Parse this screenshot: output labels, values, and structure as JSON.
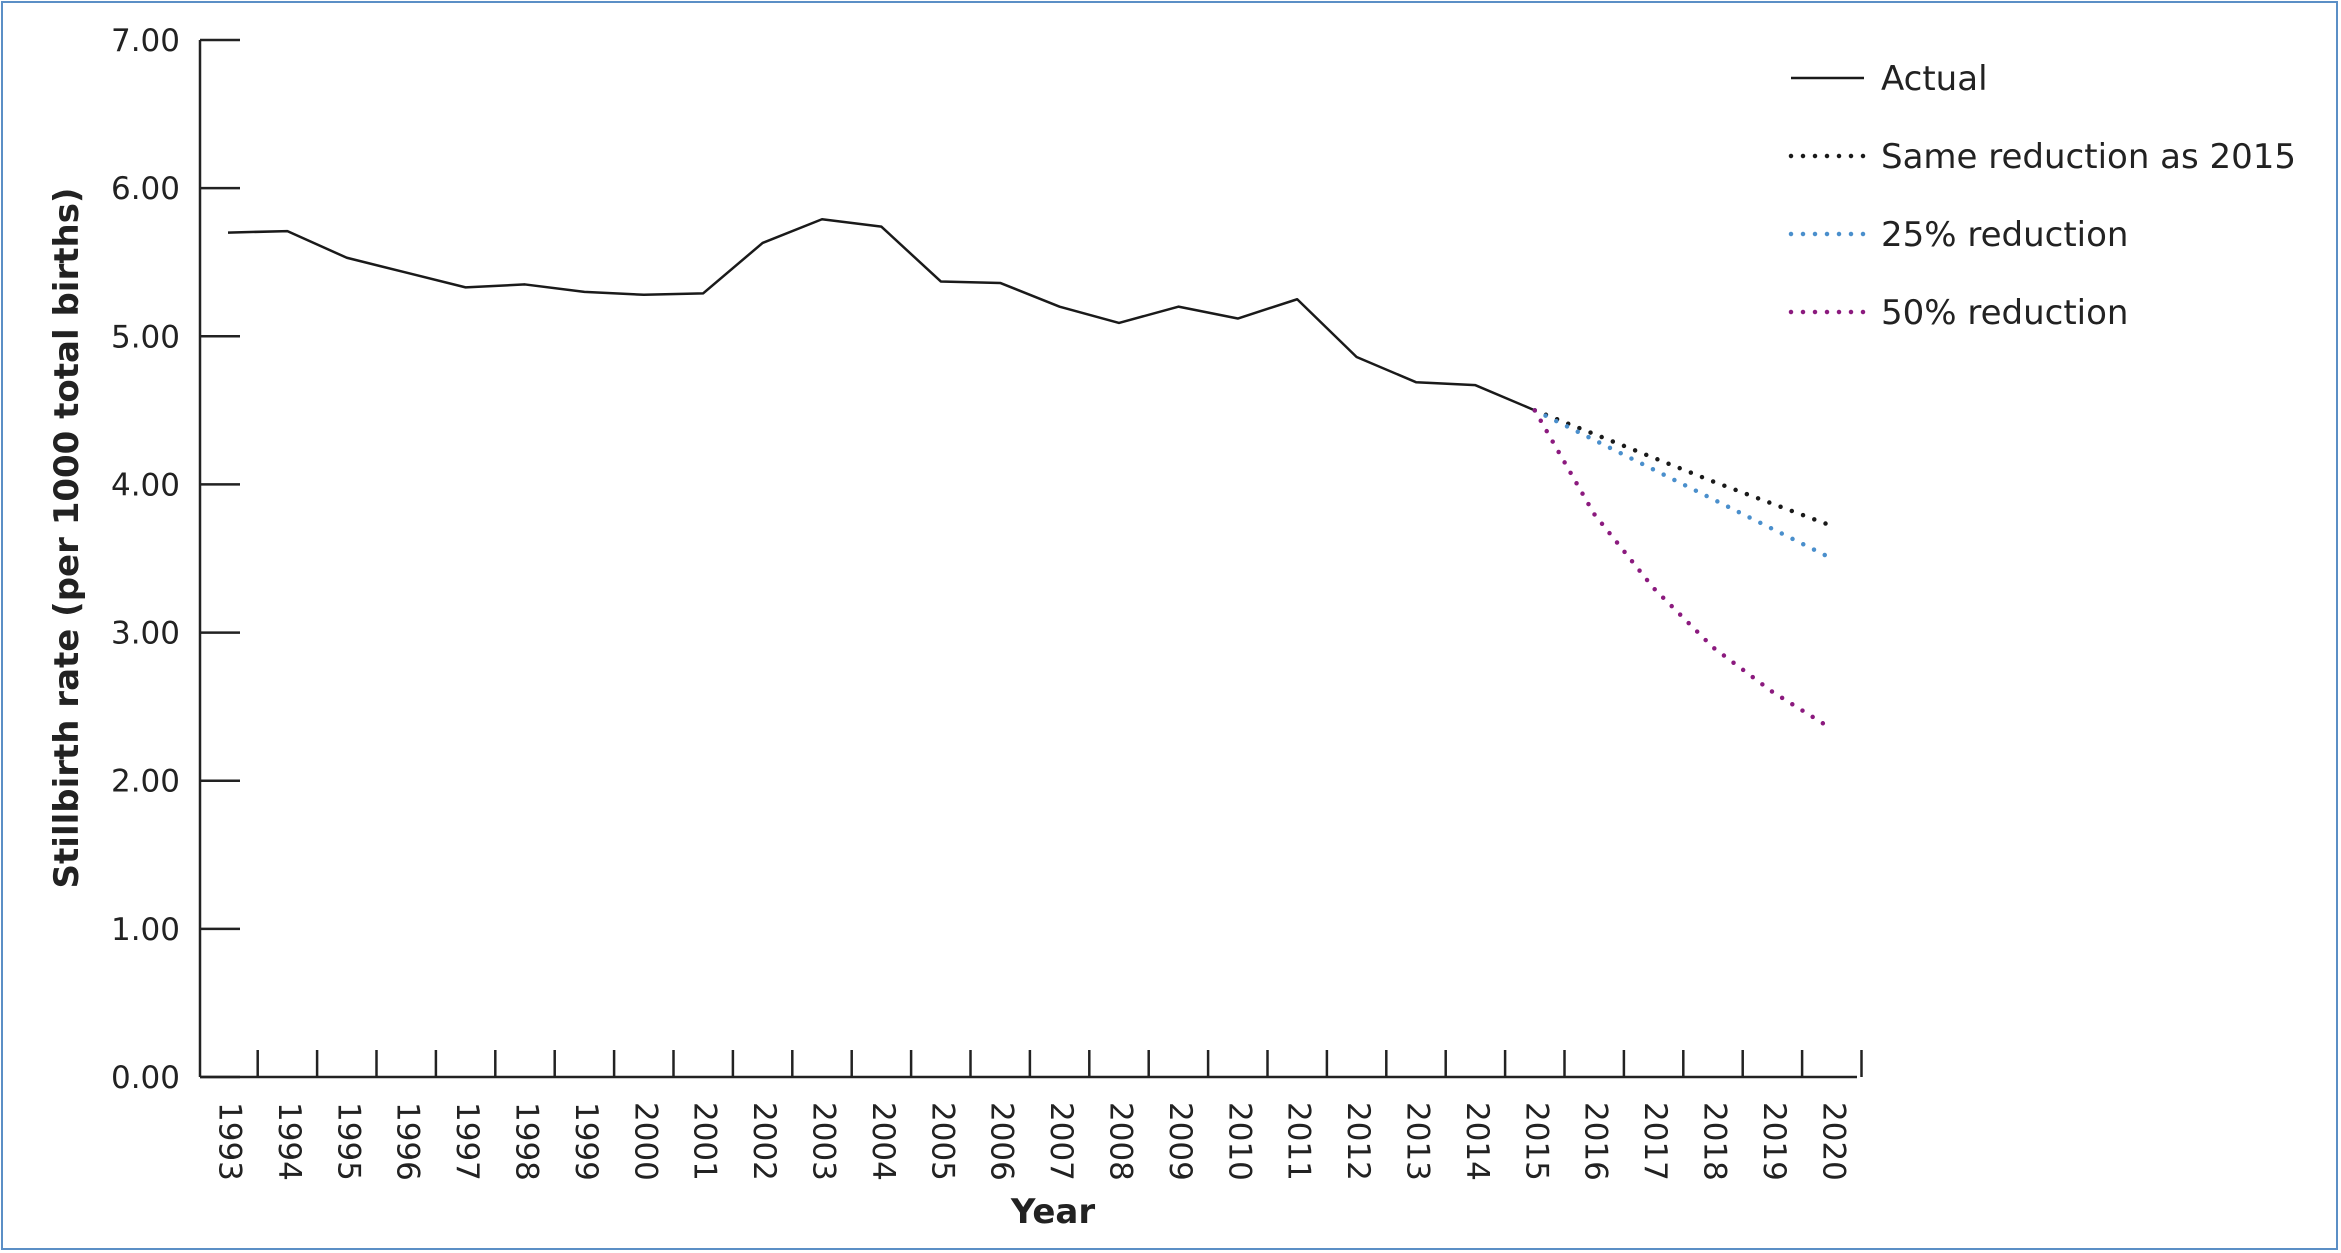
{
  "chart_data": {
    "type": "line",
    "title": "",
    "xlabel": "Year",
    "ylabel": "Stillbirth rate (per 1000 total births)",
    "ylim": [
      0,
      7
    ],
    "yticks": [
      "0.00",
      "1.00",
      "2.00",
      "3.00",
      "4.00",
      "5.00",
      "6.00",
      "7.00"
    ],
    "categories": [
      "1993",
      "1994",
      "1995",
      "1996",
      "1997",
      "1998",
      "1999",
      "2000",
      "2001",
      "2002",
      "2003",
      "2004",
      "2005",
      "2006",
      "2007",
      "2008",
      "2009",
      "2010",
      "2011",
      "2012",
      "2013",
      "2014",
      "2015",
      "2016",
      "2017",
      "2018",
      "2019",
      "2020"
    ],
    "grid": false,
    "legend_position": "top-right",
    "series": [
      {
        "name": "Actual",
        "style": "solid",
        "color": "#1a1a1a",
        "values": [
          5.7,
          5.71,
          5.53,
          5.43,
          5.33,
          5.35,
          5.3,
          5.28,
          5.29,
          5.63,
          5.79,
          5.74,
          5.37,
          5.36,
          5.2,
          5.09,
          5.2,
          5.12,
          5.25,
          4.86,
          4.69,
          4.67,
          4.5,
          null,
          null,
          null,
          null,
          null
        ]
      },
      {
        "name": "Same reduction as 2015",
        "style": "dotted",
        "color": "#1a1a1a",
        "values": [
          null,
          null,
          null,
          null,
          null,
          null,
          null,
          null,
          null,
          null,
          null,
          null,
          null,
          null,
          null,
          null,
          null,
          null,
          null,
          null,
          null,
          null,
          4.5,
          4.34,
          4.18,
          4.02,
          3.87,
          3.72
        ]
      },
      {
        "name": "25% reduction",
        "style": "dotted",
        "color": "#4a8fcc",
        "values": [
          null,
          null,
          null,
          null,
          null,
          null,
          null,
          null,
          null,
          null,
          null,
          null,
          null,
          null,
          null,
          null,
          null,
          null,
          null,
          null,
          null,
          null,
          4.5,
          4.3,
          4.1,
          3.9,
          3.7,
          3.5
        ]
      },
      {
        "name": "50% reduction",
        "style": "dotted",
        "color": "#8b1a7e",
        "values": [
          null,
          null,
          null,
          null,
          null,
          null,
          null,
          null,
          null,
          null,
          null,
          null,
          null,
          null,
          null,
          null,
          null,
          null,
          null,
          null,
          null,
          null,
          4.5,
          3.8,
          3.3,
          2.9,
          2.6,
          2.35
        ]
      }
    ]
  }
}
